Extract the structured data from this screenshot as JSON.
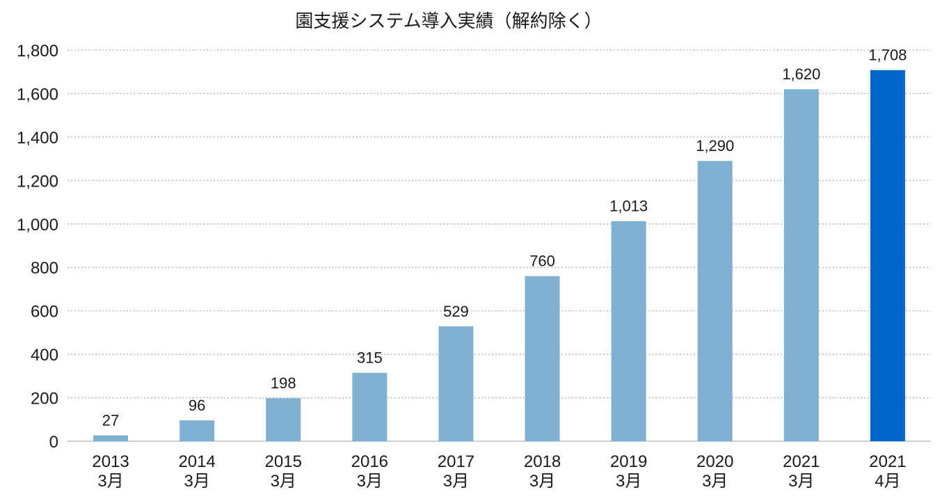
{
  "chart_data": {
    "type": "bar",
    "title": "園支援システム導入実績（解約除く）",
    "categories": [
      [
        "2013",
        "3月"
      ],
      [
        "2014",
        "3月"
      ],
      [
        "2015",
        "3月"
      ],
      [
        "2016",
        "3月"
      ],
      [
        "2017",
        "3月"
      ],
      [
        "2018",
        "3月"
      ],
      [
        "2019",
        "3月"
      ],
      [
        "2020",
        "3月"
      ],
      [
        "2021",
        "3月"
      ],
      [
        "2021",
        "4月"
      ]
    ],
    "values": [
      27,
      96,
      198,
      315,
      529,
      760,
      1013,
      1290,
      1620,
      1708
    ],
    "value_labels": [
      "27",
      "96",
      "198",
      "315",
      "529",
      "760",
      "1,013",
      "1,290",
      "1,620",
      "1,708"
    ],
    "highlight_index": 9,
    "xlabel": "",
    "ylabel": "",
    "ylim": [
      0,
      1800
    ],
    "y_ticks": [
      0,
      200,
      400,
      600,
      800,
      1000,
      1200,
      1400,
      1600,
      1800
    ],
    "y_tick_labels": [
      "0",
      "200",
      "400",
      "600",
      "800",
      "1,000",
      "1,200",
      "1,400",
      "1,600",
      "1,800"
    ],
    "grid": "horizontal-dotted",
    "legend": "none",
    "colors": {
      "bar": "#7fb0d3",
      "highlight_bar": "#0066cc",
      "grid": "#aaaaaa",
      "axis": "#bfbfbf",
      "text": "#1a1a1a"
    }
  }
}
